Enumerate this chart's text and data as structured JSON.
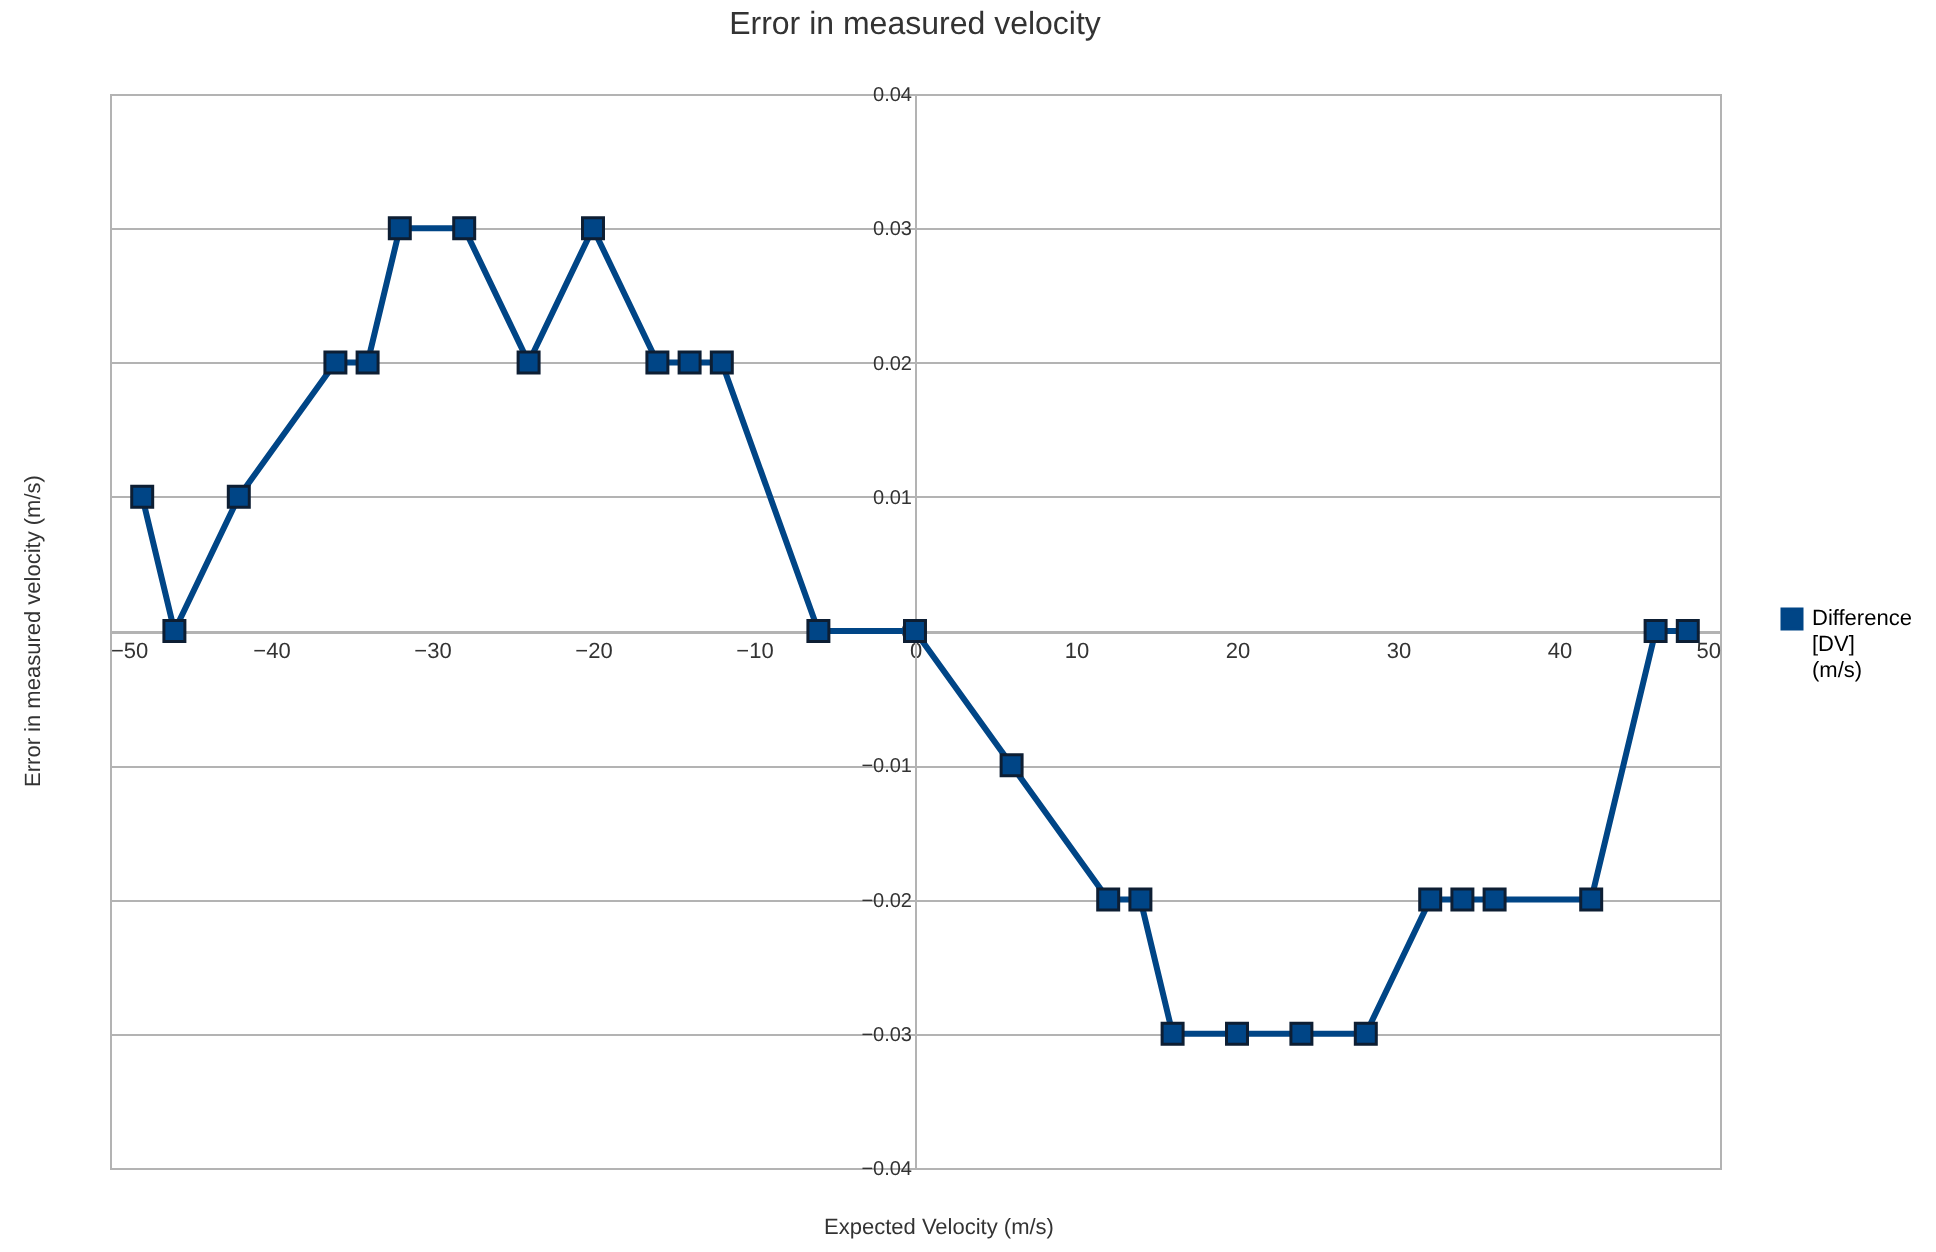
{
  "chart_data": {
    "type": "line",
    "title": "Error in measured velocity",
    "xlabel": "Expected Velocity (m/s)",
    "ylabel": "Error in measured velocity (m/s)",
    "x": [
      -48,
      -46,
      -42,
      -36,
      -34,
      -32,
      -28,
      -24,
      -20,
      -16,
      -14,
      -12,
      -6,
      0,
      6,
      12,
      14,
      16,
      20,
      24,
      28,
      32,
      34,
      36,
      42,
      46,
      48
    ],
    "series": [
      {
        "name": "Difference [DV] (m/s)",
        "color": "#004586",
        "values": [
          0.01,
          0,
          0.01,
          0.02,
          0.02,
          0.03,
          0.03,
          0.02,
          0.03,
          0.02,
          0.02,
          0.02,
          0,
          0,
          -0.01,
          -0.02,
          -0.02,
          -0.03,
          -0.03,
          -0.03,
          -0.03,
          -0.02,
          -0.02,
          -0.02,
          -0.02,
          0,
          0
        ]
      }
    ],
    "xlim": [
      -50,
      50
    ],
    "xticks": [
      -50,
      -40,
      -30,
      -20,
      -10,
      0,
      10,
      20,
      30,
      40,
      50
    ],
    "ylim": [
      -0.04,
      0.04
    ],
    "yticks": [
      -0.04,
      -0.03,
      -0.02,
      -0.01,
      0,
      0.01,
      0.02,
      0.03,
      0.04
    ],
    "grid": "y",
    "legend": "right",
    "marker": "square",
    "line_style": "solid"
  }
}
